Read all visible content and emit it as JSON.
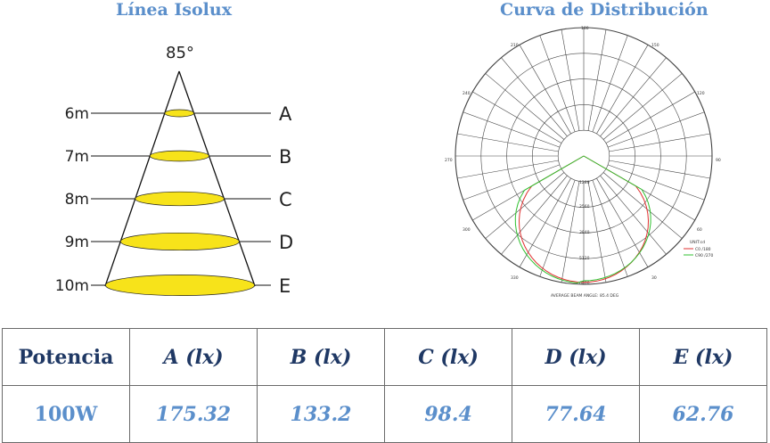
{
  "isolux": {
    "title": "Línea Isolux",
    "angle_label": "85°",
    "levels": [
      {
        "height": "6m",
        "letter": "A"
      },
      {
        "height": "7m",
        "letter": "B"
      },
      {
        "height": "8m",
        "letter": "C"
      },
      {
        "height": "9m",
        "letter": "D"
      },
      {
        "height": "10m",
        "letter": "E"
      }
    ],
    "spot_color": "#f7e31a"
  },
  "distribution": {
    "title": "Curva de Distribución",
    "angle_labels": {
      "top": "180",
      "upper_left": "210",
      "upper_right": "150",
      "mid_upper_left": "240",
      "mid_upper_right": "120",
      "left": "270",
      "right": "90",
      "lower_left": "300",
      "lower_right": "60",
      "bottom_left": "330",
      "bottom_right": "30"
    },
    "radial_labels": [
      "1280",
      "2560",
      "3840",
      "5120",
      "6400"
    ],
    "legend": {
      "unit": "UNIT:cd",
      "c0": "C0 /180",
      "c90": "C90 /270"
    },
    "footer": "AVERAGE BEAM ANGLE: 85.4 DEG",
    "colors": {
      "c0": "#e03030",
      "c90": "#30c030"
    }
  },
  "table": {
    "headers": [
      "Potencia",
      "A (lx)",
      "B (lx)",
      "C (lx)",
      "D (lx)",
      "E (lx)"
    ],
    "values": [
      "100W",
      "175.32",
      "133.2",
      "98.4",
      "77.64",
      "62.76"
    ]
  }
}
